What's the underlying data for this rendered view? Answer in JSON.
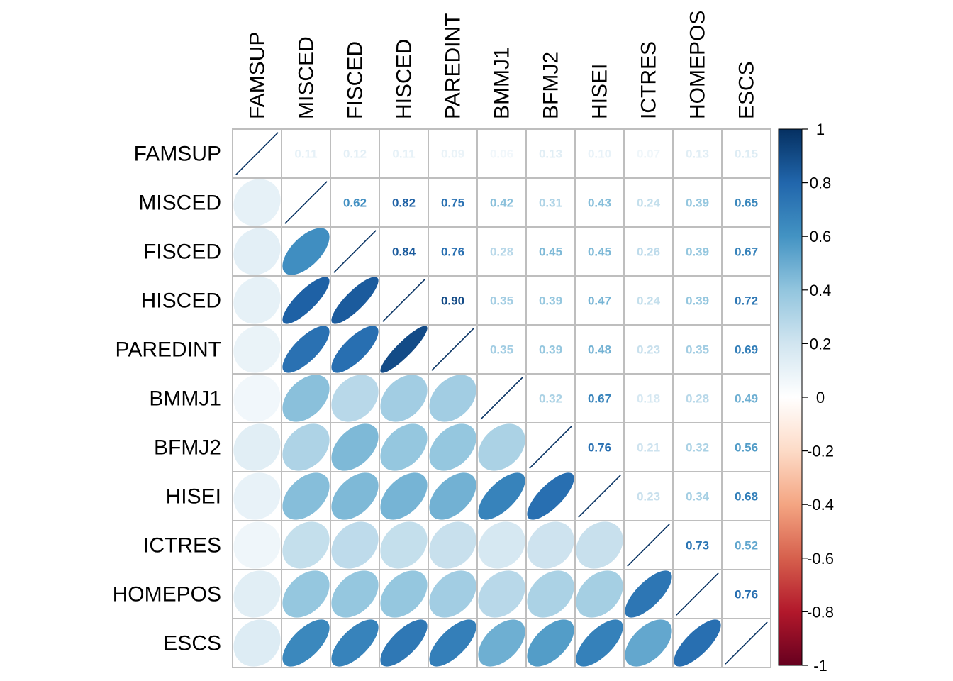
{
  "chart_data": {
    "type": "heatmap",
    "title": "",
    "variables": [
      "FAMSUP",
      "MISCED",
      "FISCED",
      "HISCED",
      "PAREDINT",
      "BMMJ1",
      "BFMJ2",
      "HISEI",
      "ICTRES",
      "HOMEPOS",
      "ESCS"
    ],
    "matrix": [
      [
        1.0,
        0.11,
        0.12,
        0.11,
        0.09,
        0.06,
        0.13,
        0.1,
        0.07,
        0.13,
        0.15
      ],
      [
        0.11,
        1.0,
        0.62,
        0.82,
        0.75,
        0.42,
        0.31,
        0.43,
        0.24,
        0.39,
        0.65
      ],
      [
        0.12,
        0.62,
        1.0,
        0.84,
        0.76,
        0.28,
        0.45,
        0.45,
        0.26,
        0.39,
        0.67
      ],
      [
        0.11,
        0.82,
        0.84,
        1.0,
        0.9,
        0.35,
        0.39,
        0.47,
        0.24,
        0.39,
        0.72
      ],
      [
        0.09,
        0.75,
        0.76,
        0.9,
        1.0,
        0.35,
        0.39,
        0.48,
        0.23,
        0.35,
        0.69
      ],
      [
        0.06,
        0.42,
        0.28,
        0.35,
        0.35,
        1.0,
        0.32,
        0.67,
        0.18,
        0.28,
        0.49
      ],
      [
        0.13,
        0.31,
        0.45,
        0.39,
        0.39,
        0.32,
        1.0,
        0.76,
        0.21,
        0.32,
        0.56
      ],
      [
        0.1,
        0.43,
        0.45,
        0.47,
        0.48,
        0.67,
        0.76,
        1.0,
        0.23,
        0.34,
        0.68
      ],
      [
        0.07,
        0.24,
        0.26,
        0.24,
        0.23,
        0.18,
        0.21,
        0.23,
        1.0,
        0.73,
        0.52
      ],
      [
        0.13,
        0.39,
        0.39,
        0.39,
        0.35,
        0.28,
        0.32,
        0.34,
        0.73,
        1.0,
        0.76
      ],
      [
        0.15,
        0.65,
        0.67,
        0.72,
        0.69,
        0.49,
        0.56,
        0.68,
        0.52,
        0.76,
        1.0
      ]
    ],
    "lower_triangle": "ellipse",
    "upper_triangle": "number",
    "diagonal": "line",
    "color_range": [
      -1,
      1
    ],
    "color_scale": [
      "#67001F",
      "#B2182B",
      "#D6604D",
      "#F4A582",
      "#FDDBC7",
      "#FFFFFF",
      "#D1E5F0",
      "#92C5DE",
      "#4393C3",
      "#2166AC",
      "#053061"
    ],
    "colorbar_ticks": [
      "1",
      "0.8",
      "0.6",
      "0.4",
      "0.2",
      "0",
      "-0.2",
      "-0.4",
      "-0.6",
      "-0.8",
      "-1"
    ],
    "colorbar_tick_values": [
      1,
      0.8,
      0.6,
      0.4,
      0.2,
      0,
      -0.2,
      -0.4,
      -0.6,
      -0.8,
      -1
    ],
    "grid_color": "#BEBEBE"
  }
}
